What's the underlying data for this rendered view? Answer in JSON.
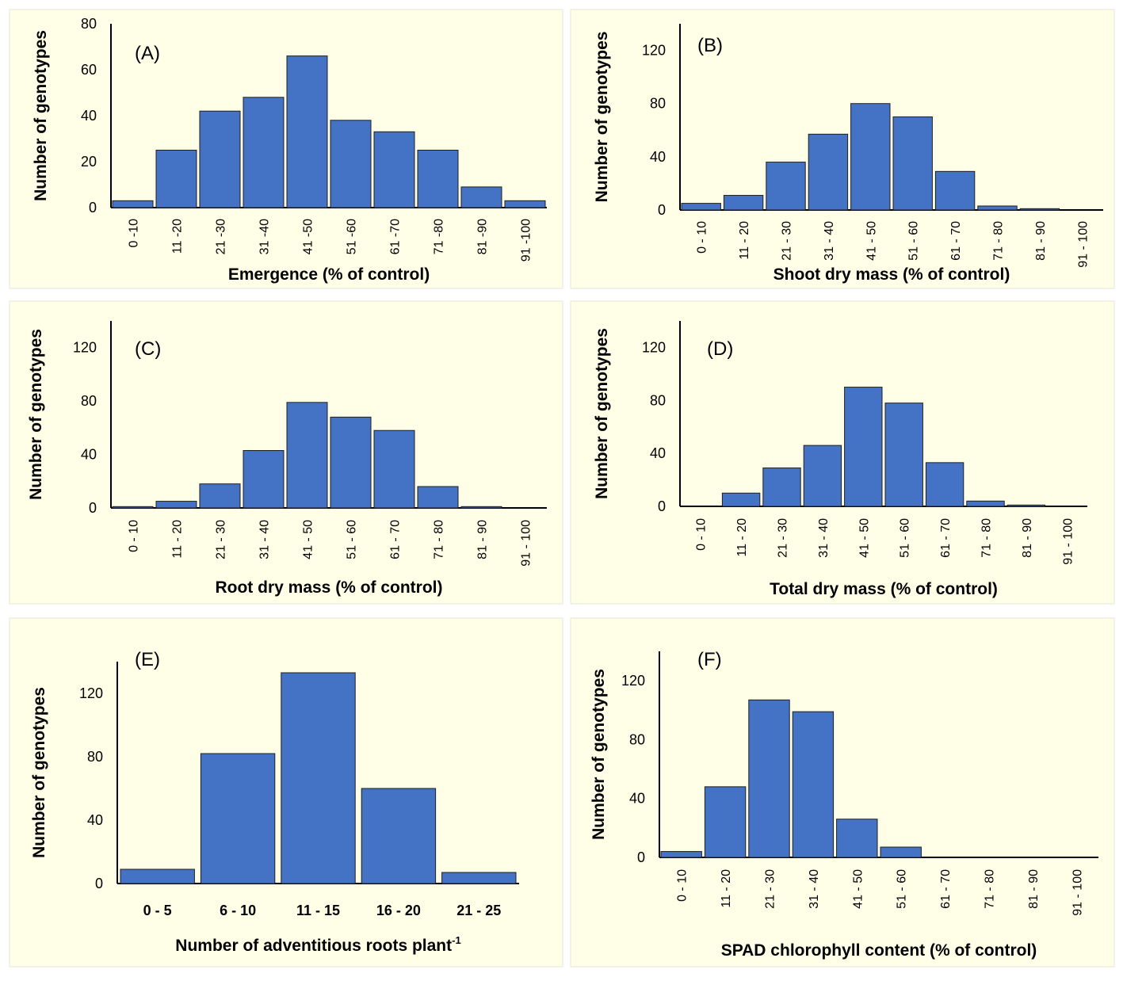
{
  "colors": {
    "background": "#FFFFE8",
    "bar": "#4472C4",
    "bar_border": "#1f1f1f"
  },
  "chart_data": [
    {
      "type": "bar",
      "title": "(A)",
      "xlabel": "Emergence (% of control)",
      "ylabel": "Number of genotypes",
      "ylim": [
        0,
        80
      ],
      "yticks": [
        0,
        20,
        40,
        60,
        80
      ],
      "categories": [
        "0 -10",
        "11 -20",
        "21 -30",
        "31 -40",
        "41 -50",
        "51 -60",
        "61 -70",
        "71 -80",
        "81 -90",
        "91 -100"
      ],
      "values": [
        3,
        25,
        42,
        48,
        66,
        38,
        33,
        25,
        9,
        3
      ]
    },
    {
      "type": "bar",
      "title": "(B)",
      "xlabel": "Shoot dry mass (% of control)",
      "ylabel": "Number of genotypes",
      "ylim": [
        0,
        140
      ],
      "yticks": [
        0,
        40,
        80,
        120
      ],
      "categories": [
        "0 - 10",
        "11 - 20",
        "21 - 30",
        "31 - 40",
        "41 - 50",
        "51 - 60",
        "61 - 70",
        "71 - 80",
        "81 - 90",
        "91 - 100"
      ],
      "values": [
        5,
        11,
        36,
        57,
        80,
        70,
        29,
        3,
        1,
        0
      ]
    },
    {
      "type": "bar",
      "title": "(C)",
      "xlabel": "Root dry mass (% of control)",
      "ylabel": "Number of genotypes",
      "ylim": [
        0,
        140
      ],
      "yticks": [
        0,
        40,
        80,
        120
      ],
      "categories": [
        "0 - 10",
        "11 - 20",
        "21 - 30",
        "31 - 40",
        "41 - 50",
        "51 - 60",
        "61 - 70",
        "71 - 80",
        "81 - 90",
        "91 - 100"
      ],
      "values": [
        1,
        5,
        18,
        43,
        79,
        68,
        58,
        16,
        1,
        0
      ]
    },
    {
      "type": "bar",
      "title": "(D)",
      "xlabel": "Total dry mass (% of control)",
      "ylabel": "Number of genotypes",
      "ylim": [
        0,
        140
      ],
      "yticks": [
        0,
        40,
        80,
        120
      ],
      "categories": [
        "0 - 10",
        "11 - 20",
        "21 - 30",
        "31 - 40",
        "41 - 50",
        "51 - 60",
        "61 - 70",
        "71 - 80",
        "81 - 90",
        "91 - 100"
      ],
      "values": [
        0,
        10,
        29,
        46,
        90,
        78,
        33,
        4,
        1,
        0
      ]
    },
    {
      "type": "bar",
      "title": "(E)",
      "xlabel": "Number of adventitious roots plant",
      "xlabel_sup": "-1",
      "ylabel": "Number of genotypes",
      "ylim": [
        0,
        140
      ],
      "yticks": [
        0,
        40,
        80,
        120
      ],
      "categories": [
        "0 - 5",
        "6 - 10",
        "11 - 15",
        "16 - 20",
        "21 - 25"
      ],
      "values": [
        9,
        82,
        133,
        60,
        7
      ]
    },
    {
      "type": "bar",
      "title": "(F)",
      "xlabel": "SPAD chlorophyll content (% of control)",
      "ylabel": "Number of genotypes",
      "ylim": [
        0,
        140
      ],
      "yticks": [
        0,
        40,
        80,
        120
      ],
      "categories": [
        "0 - 10",
        "11 - 20",
        "21 - 30",
        "31 - 40",
        "41 - 50",
        "51 - 60",
        "61 - 70",
        "71 - 80",
        "81 - 90",
        "91 - 100"
      ],
      "values": [
        4,
        48,
        107,
        99,
        26,
        7,
        0,
        0,
        0,
        0
      ]
    }
  ]
}
